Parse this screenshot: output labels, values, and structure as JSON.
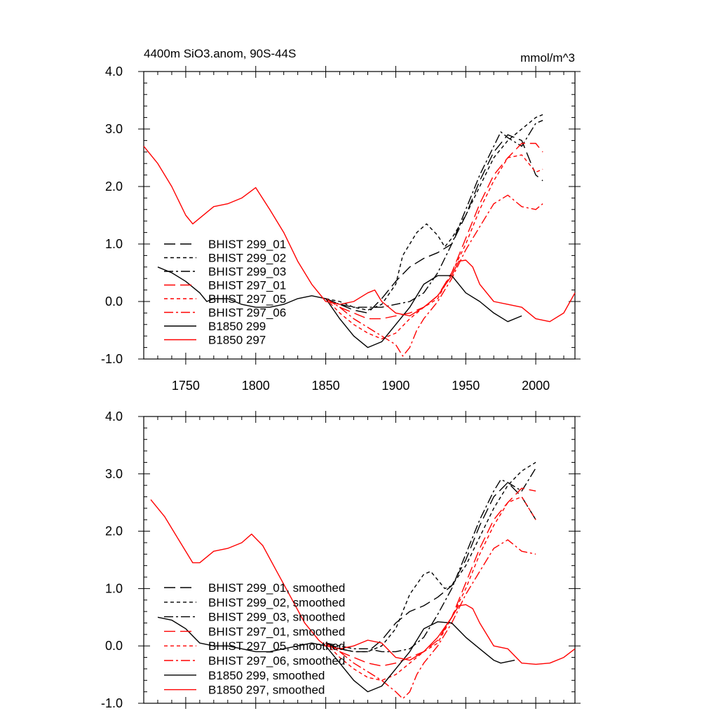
{
  "figure": {
    "title_left": "4400m SiO3.anom, 90S-44S",
    "title_right": "mmol/m^3"
  },
  "colors": {
    "black": "#000000",
    "red": "#ff0000"
  },
  "chart_data": [
    {
      "type": "line",
      "panel": "top",
      "xlim": [
        1720,
        2028
      ],
      "ylim": [
        -1.0,
        4.0
      ],
      "xticks": [
        1750,
        1800,
        1850,
        1900,
        1950,
        2000
      ],
      "xtick_labels": [
        "1750",
        "1800",
        "1850",
        "1900",
        "1950",
        "2000"
      ],
      "yticks": [
        -1.0,
        0.0,
        1.0,
        2.0,
        3.0,
        4.0
      ],
      "ytick_labels": [
        "-1.0",
        "0.0",
        "1.0",
        "2.0",
        "3.0",
        "4.0"
      ],
      "legend_position": "lower-left",
      "series": [
        {
          "name": "BHIST 299_01",
          "color": "#000000",
          "dash": "long",
          "x": [
            1850,
            1860,
            1870,
            1880,
            1890,
            1900,
            1910,
            1920,
            1930,
            1940,
            1950,
            1960,
            1970,
            1980,
            1990,
            2000,
            2005
          ],
          "y": [
            0.05,
            -0.05,
            -0.15,
            -0.2,
            0.05,
            0.35,
            0.6,
            0.75,
            0.85,
            1.0,
            1.5,
            2.1,
            2.6,
            2.9,
            2.8,
            2.2,
            2.1
          ]
        },
        {
          "name": "BHIST 299_02",
          "color": "#000000",
          "dash": "short",
          "x": [
            1850,
            1860,
            1870,
            1880,
            1890,
            1900,
            1905,
            1915,
            1922,
            1930,
            1935,
            1940,
            1950,
            1960,
            1970,
            1980,
            1990,
            2000,
            2005
          ],
          "y": [
            0.05,
            0.0,
            -0.1,
            -0.15,
            -0.05,
            0.3,
            0.8,
            1.2,
            1.35,
            1.15,
            0.95,
            1.1,
            1.5,
            2.0,
            2.5,
            2.8,
            3.0,
            3.2,
            3.25
          ]
        },
        {
          "name": "BHIST 299_03",
          "color": "#000000",
          "dash": "dashdot",
          "x": [
            1850,
            1860,
            1870,
            1880,
            1890,
            1900,
            1910,
            1920,
            1930,
            1940,
            1950,
            1960,
            1970,
            1975,
            1980,
            1990,
            2000,
            2005
          ],
          "y": [
            0.05,
            -0.05,
            -0.1,
            -0.1,
            -0.1,
            -0.05,
            0.0,
            0.15,
            0.5,
            1.0,
            1.6,
            2.2,
            2.7,
            2.95,
            2.85,
            2.7,
            3.1,
            3.15
          ]
        },
        {
          "name": "BHIST 297_01",
          "color": "#ff0000",
          "dash": "long",
          "x": [
            1850,
            1860,
            1870,
            1880,
            1890,
            1900,
            1910,
            1920,
            1930,
            1940,
            1950,
            1960,
            1970,
            1980,
            1990,
            2000,
            2005
          ],
          "y": [
            0.05,
            -0.1,
            -0.2,
            -0.3,
            -0.3,
            -0.25,
            -0.2,
            -0.1,
            0.1,
            0.5,
            1.1,
            1.7,
            2.2,
            2.5,
            2.75,
            2.75,
            2.6
          ]
        },
        {
          "name": "BHIST 297_05",
          "color": "#ff0000",
          "dash": "short",
          "x": [
            1850,
            1860,
            1870,
            1880,
            1890,
            1900,
            1910,
            1920,
            1930,
            1940,
            1950,
            1960,
            1970,
            1980,
            1990,
            2000,
            2005
          ],
          "y": [
            0.05,
            -0.2,
            -0.4,
            -0.55,
            -0.65,
            -0.55,
            -0.3,
            -0.1,
            0.05,
            0.5,
            1.0,
            1.6,
            2.1,
            2.5,
            2.55,
            2.25,
            2.3
          ]
        },
        {
          "name": "BHIST 297_06",
          "color": "#ff0000",
          "dash": "dashdot",
          "x": [
            1850,
            1860,
            1870,
            1880,
            1890,
            1900,
            1905,
            1910,
            1915,
            1920,
            1930,
            1940,
            1950,
            1960,
            1970,
            1980,
            1990,
            2000,
            2005
          ],
          "y": [
            0.05,
            -0.1,
            -0.3,
            -0.45,
            -0.6,
            -0.75,
            -0.95,
            -0.8,
            -0.5,
            -0.3,
            0.0,
            0.4,
            0.9,
            1.3,
            1.7,
            1.85,
            1.65,
            1.6,
            1.7
          ]
        },
        {
          "name": "B1850 299",
          "color": "#000000",
          "dash": "solid",
          "x": [
            1730,
            1740,
            1750,
            1760,
            1765,
            1770,
            1780,
            1790,
            1800,
            1810,
            1820,
            1830,
            1840,
            1850,
            1860,
            1870,
            1880,
            1890,
            1900,
            1910,
            1920,
            1930,
            1940,
            1950,
            1960,
            1970,
            1980,
            1990
          ],
          "y": [
            0.6,
            0.5,
            0.35,
            0.15,
            0.0,
            0.05,
            0.05,
            -0.05,
            -0.1,
            -0.1,
            -0.05,
            0.05,
            0.1,
            0.05,
            -0.3,
            -0.6,
            -0.8,
            -0.7,
            -0.4,
            -0.1,
            0.3,
            0.45,
            0.45,
            0.15,
            0.0,
            -0.2,
            -0.35,
            -0.25
          ]
        },
        {
          "name": "B1850 297",
          "color": "#ff0000",
          "dash": "solid",
          "x": [
            1720,
            1730,
            1740,
            1750,
            1755,
            1760,
            1770,
            1780,
            1790,
            1800,
            1810,
            1820,
            1830,
            1840,
            1850,
            1860,
            1870,
            1880,
            1885,
            1890,
            1900,
            1910,
            1920,
            1930,
            1940,
            1945,
            1950,
            1955,
            1960,
            1970,
            1980,
            1990,
            2000,
            2010,
            2020,
            2028
          ],
          "y": [
            2.7,
            2.4,
            2.0,
            1.5,
            1.35,
            1.45,
            1.65,
            1.7,
            1.8,
            1.98,
            1.6,
            1.2,
            0.7,
            0.3,
            0.0,
            -0.05,
            0.0,
            0.15,
            0.2,
            0.0,
            -0.2,
            -0.25,
            -0.1,
            0.1,
            0.45,
            0.7,
            0.72,
            0.6,
            0.3,
            0.0,
            -0.05,
            -0.1,
            -0.3,
            -0.35,
            -0.2,
            0.15
          ]
        }
      ]
    },
    {
      "type": "line",
      "panel": "bottom",
      "xlim": [
        1720,
        2028
      ],
      "ylim": [
        -1.0,
        4.0
      ],
      "xticks": [
        1750,
        1800,
        1850,
        1900,
        1950,
        2000
      ],
      "yticks": [
        -1.0,
        0.0,
        1.0,
        2.0,
        3.0,
        4.0
      ],
      "ytick_labels": [
        "-1.0",
        "0.0",
        "1.0",
        "2.0",
        "3.0",
        "4.0"
      ],
      "legend_position": "lower-left",
      "series": [
        {
          "name": "BHIST 299_01, smoothed",
          "color": "#000000",
          "dash": "long",
          "x": [
            1850,
            1860,
            1870,
            1880,
            1890,
            1900,
            1910,
            1920,
            1930,
            1940,
            1950,
            1960,
            1970,
            1980,
            1990,
            2000
          ],
          "y": [
            0.05,
            -0.05,
            -0.1,
            -0.1,
            0.1,
            0.4,
            0.6,
            0.7,
            0.85,
            1.05,
            1.5,
            2.1,
            2.6,
            2.85,
            2.6,
            2.2
          ]
        },
        {
          "name": "BHIST 299_02, smoothed",
          "color": "#000000",
          "dash": "short",
          "x": [
            1850,
            1860,
            1870,
            1880,
            1890,
            1900,
            1910,
            1920,
            1925,
            1930,
            1935,
            1940,
            1950,
            1960,
            1970,
            1980,
            1990,
            2000
          ],
          "y": [
            0.05,
            -0.05,
            -0.1,
            -0.1,
            0.0,
            0.3,
            0.9,
            1.25,
            1.3,
            1.15,
            1.0,
            1.05,
            1.4,
            1.9,
            2.4,
            2.8,
            3.05,
            3.2
          ]
        },
        {
          "name": "BHIST 299_03, smoothed",
          "color": "#000000",
          "dash": "dashdot",
          "x": [
            1850,
            1860,
            1870,
            1880,
            1890,
            1900,
            1910,
            1920,
            1930,
            1940,
            1950,
            1960,
            1970,
            1975,
            1980,
            1990,
            2000
          ],
          "y": [
            0.05,
            0.0,
            -0.05,
            -0.05,
            -0.1,
            -0.1,
            -0.05,
            0.15,
            0.55,
            1.0,
            1.6,
            2.2,
            2.7,
            2.9,
            2.85,
            2.7,
            3.1
          ]
        },
        {
          "name": "BHIST 297_01, smoothed",
          "color": "#ff0000",
          "dash": "long",
          "x": [
            1850,
            1860,
            1870,
            1880,
            1890,
            1900,
            1910,
            1920,
            1930,
            1940,
            1950,
            1960,
            1970,
            1980,
            1990,
            2000
          ],
          "y": [
            0.05,
            -0.1,
            -0.2,
            -0.3,
            -0.35,
            -0.3,
            -0.2,
            -0.1,
            0.1,
            0.5,
            1.1,
            1.7,
            2.2,
            2.5,
            2.75,
            2.7
          ]
        },
        {
          "name": "BHIST 297_05, smoothed",
          "color": "#ff0000",
          "dash": "short",
          "x": [
            1850,
            1860,
            1870,
            1880,
            1890,
            1900,
            1910,
            1920,
            1930,
            1940,
            1950,
            1960,
            1970,
            1980,
            1990,
            2000
          ],
          "y": [
            0.05,
            -0.2,
            -0.4,
            -0.55,
            -0.6,
            -0.5,
            -0.3,
            -0.1,
            0.05,
            0.5,
            1.0,
            1.6,
            2.1,
            2.5,
            2.6,
            2.2
          ]
        },
        {
          "name": "BHIST 297_06, smoothed",
          "color": "#ff0000",
          "dash": "dashdot",
          "x": [
            1850,
            1860,
            1870,
            1880,
            1890,
            1900,
            1905,
            1910,
            1915,
            1920,
            1930,
            1940,
            1950,
            1960,
            1970,
            1980,
            1990,
            2000
          ],
          "y": [
            0.05,
            -0.1,
            -0.3,
            -0.45,
            -0.6,
            -0.8,
            -0.92,
            -0.8,
            -0.5,
            -0.3,
            0.0,
            0.4,
            0.9,
            1.3,
            1.7,
            1.85,
            1.65,
            1.6
          ]
        },
        {
          "name": "B1850 299, smoothed",
          "color": "#000000",
          "dash": "solid",
          "x": [
            1730,
            1740,
            1750,
            1760,
            1770,
            1780,
            1790,
            1800,
            1810,
            1820,
            1830,
            1840,
            1850,
            1860,
            1870,
            1880,
            1890,
            1900,
            1910,
            1920,
            1930,
            1940,
            1950,
            1960,
            1970,
            1975,
            1985
          ],
          "y": [
            0.5,
            0.45,
            0.3,
            0.05,
            0.0,
            0.0,
            -0.05,
            -0.1,
            -0.1,
            -0.05,
            0.0,
            0.05,
            0.0,
            -0.3,
            -0.6,
            -0.8,
            -0.7,
            -0.4,
            -0.1,
            0.3,
            0.42,
            0.4,
            0.15,
            -0.05,
            -0.25,
            -0.3,
            -0.25
          ]
        },
        {
          "name": "B1850 297, smoothed",
          "color": "#ff0000",
          "dash": "solid",
          "x": [
            1725,
            1735,
            1745,
            1755,
            1760,
            1770,
            1780,
            1790,
            1797,
            1805,
            1815,
            1825,
            1835,
            1845,
            1850,
            1860,
            1870,
            1880,
            1890,
            1900,
            1910,
            1920,
            1930,
            1940,
            1945,
            1950,
            1955,
            1960,
            1970,
            1980,
            1990,
            2000,
            2010,
            2020,
            2028
          ],
          "y": [
            2.55,
            2.25,
            1.85,
            1.45,
            1.45,
            1.65,
            1.7,
            1.8,
            1.95,
            1.75,
            1.3,
            0.85,
            0.4,
            0.1,
            0.0,
            -0.05,
            0.0,
            0.1,
            0.05,
            -0.2,
            -0.25,
            -0.1,
            0.15,
            0.5,
            0.7,
            0.72,
            0.65,
            0.4,
            0.0,
            -0.05,
            -0.3,
            -0.32,
            -0.3,
            -0.2,
            -0.05
          ]
        }
      ]
    }
  ]
}
